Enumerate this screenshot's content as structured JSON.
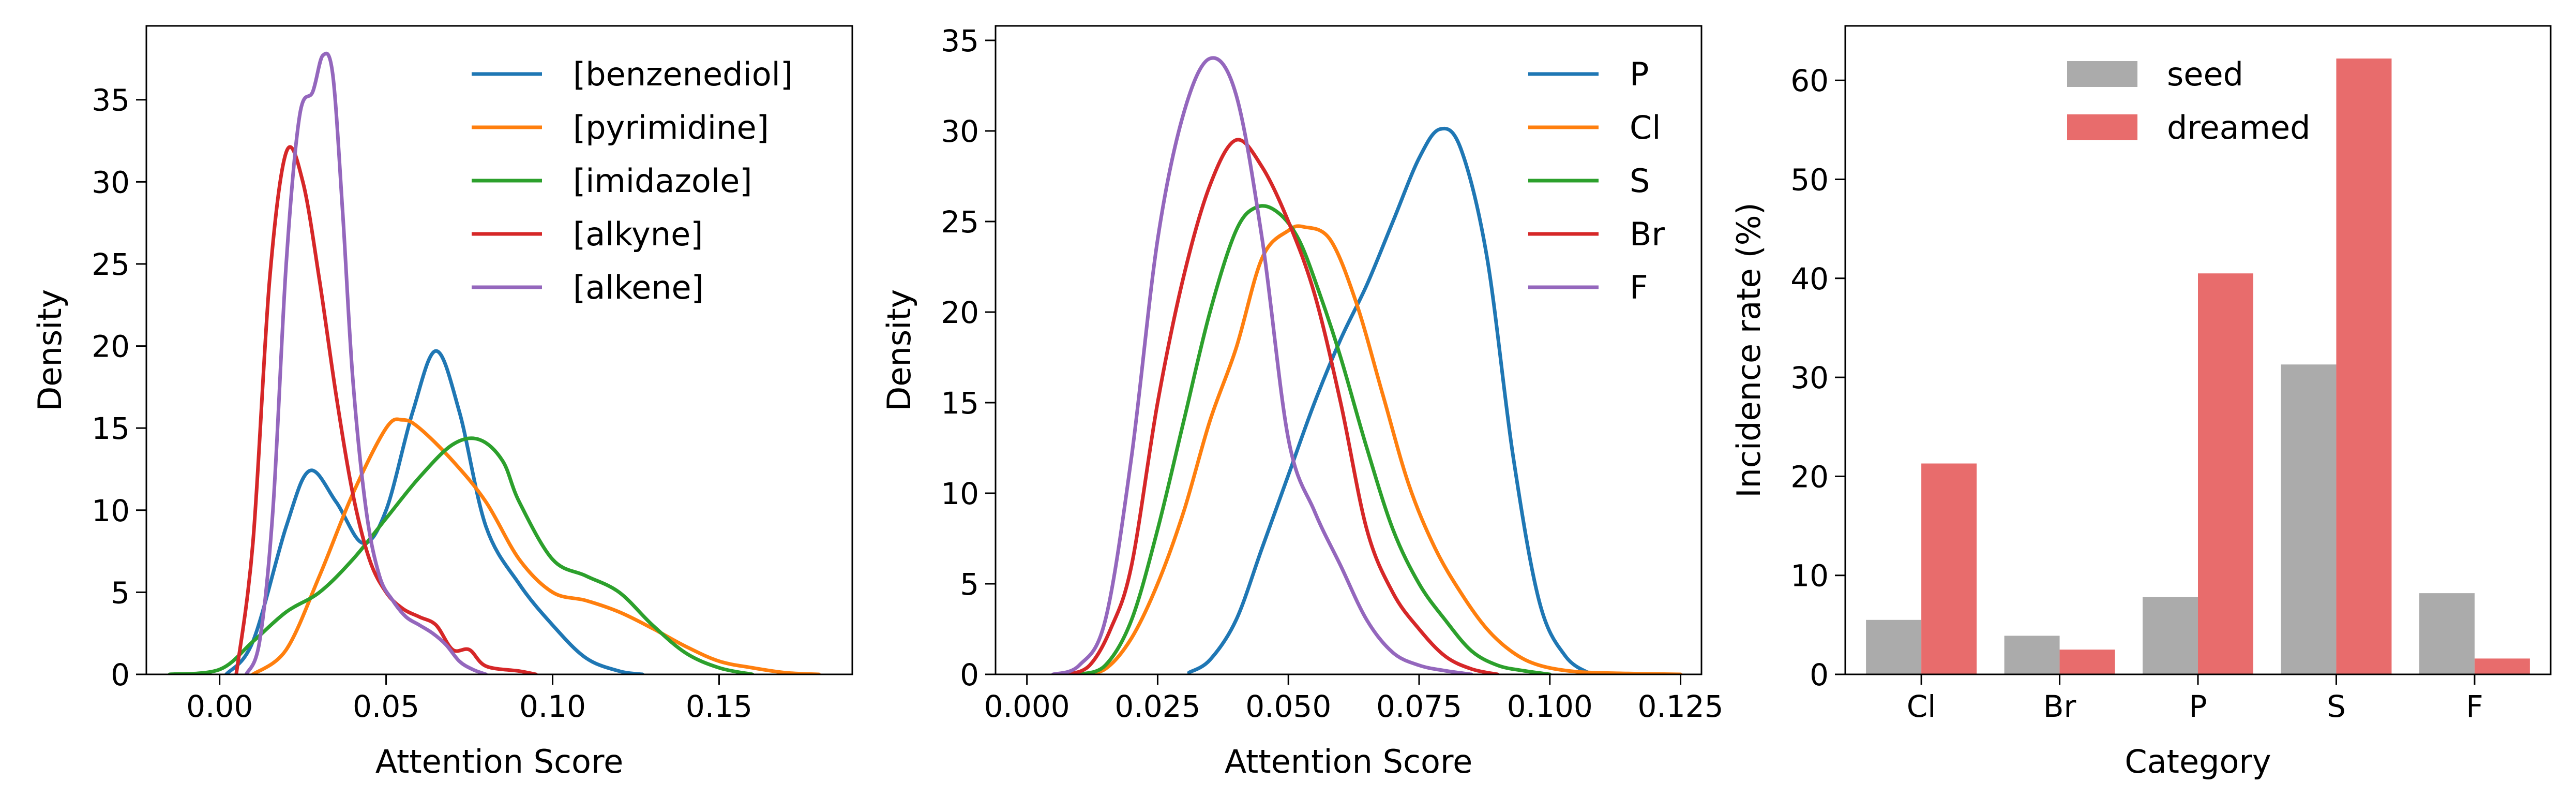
{
  "chart_data": [
    {
      "type": "line",
      "subtype": "kde",
      "xlabel": "Attention Score",
      "ylabel": "Density",
      "xlim": [
        -0.022,
        0.19
      ],
      "ylim": [
        0,
        39.5
      ],
      "xticks": [
        0.0,
        0.05,
        0.1,
        0.15
      ],
      "xtick_labels": [
        "0.00",
        "0.05",
        "0.10",
        "0.15"
      ],
      "yticks": [
        0,
        5,
        10,
        15,
        20,
        25,
        30,
        35
      ],
      "ytick_labels": [
        "0",
        "5",
        "10",
        "15",
        "20",
        "25",
        "30",
        "35"
      ],
      "grid": false,
      "legend_position": "top-right",
      "series": [
        {
          "name": "[benzenediol]",
          "color": "#1f77b4",
          "x": [
            0.002,
            0.01,
            0.02,
            0.027,
            0.035,
            0.043,
            0.05,
            0.058,
            0.065,
            0.072,
            0.08,
            0.09,
            0.1,
            0.11,
            0.12,
            0.127
          ],
          "y": [
            0,
            2,
            9,
            12.4,
            10.5,
            8,
            10,
            16,
            19.7,
            16,
            9,
            5.5,
            3,
            1,
            0.2,
            0
          ]
        },
        {
          "name": "[pyrimidine]",
          "color": "#ff7f0e",
          "x": [
            0.01,
            0.02,
            0.03,
            0.04,
            0.05,
            0.055,
            0.06,
            0.07,
            0.08,
            0.09,
            0.1,
            0.11,
            0.12,
            0.13,
            0.14,
            0.15,
            0.16,
            0.17,
            0.18
          ],
          "y": [
            0,
            1.5,
            6,
            11,
            15,
            15.5,
            15,
            13,
            10.5,
            7,
            5,
            4.5,
            3.8,
            2.8,
            1.7,
            0.8,
            0.4,
            0.1,
            0
          ]
        },
        {
          "name": "[imidazole]",
          "color": "#2ca02c",
          "x": [
            -0.015,
            0,
            0.01,
            0.02,
            0.03,
            0.04,
            0.05,
            0.06,
            0.07,
            0.078,
            0.085,
            0.09,
            0.1,
            0.11,
            0.12,
            0.13,
            0.14,
            0.15,
            0.16
          ],
          "y": [
            0,
            0.3,
            2,
            3.8,
            5,
            7,
            9.5,
            12,
            14,
            14.3,
            13,
            10.5,
            7,
            6,
            5,
            3,
            1.3,
            0.4,
            0
          ]
        },
        {
          "name": "[alkyne]",
          "color": "#d62728",
          "x": [
            0.005,
            0.01,
            0.015,
            0.02,
            0.025,
            0.03,
            0.035,
            0.04,
            0.045,
            0.05,
            0.055,
            0.06,
            0.065,
            0.07,
            0.075,
            0.08,
            0.09,
            0.095
          ],
          "y": [
            0,
            8,
            24,
            31.8,
            30,
            24,
            17,
            11,
            7,
            5,
            4,
            3.5,
            3,
            1.5,
            1.5,
            0.5,
            0.2,
            0
          ]
        },
        {
          "name": "[alkene]",
          "color": "#9467bd",
          "x": [
            0.008,
            0.012,
            0.016,
            0.02,
            0.024,
            0.028,
            0.031,
            0.034,
            0.037,
            0.04,
            0.044,
            0.048,
            0.052,
            0.056,
            0.06,
            0.064,
            0.068,
            0.072,
            0.076,
            0.08
          ],
          "y": [
            0,
            2,
            10,
            25,
            34,
            35.5,
            37.7,
            36.5,
            28,
            18,
            10,
            6,
            4.5,
            3.5,
            3,
            2.5,
            1.8,
            0.8,
            0.3,
            0
          ]
        }
      ]
    },
    {
      "type": "line",
      "subtype": "kde",
      "xlabel": "Attention Score",
      "ylabel": "Density",
      "xlim": [
        -0.006,
        0.129
      ],
      "ylim": [
        0,
        35.8
      ],
      "xticks": [
        0.0,
        0.025,
        0.05,
        0.075,
        0.1,
        0.125
      ],
      "xtick_labels": [
        "0.000",
        "0.025",
        "0.050",
        "0.075",
        "0.100",
        "0.125"
      ],
      "yticks": [
        0,
        5,
        10,
        15,
        20,
        25,
        30,
        35
      ],
      "ytick_labels": [
        "0",
        "5",
        "10",
        "15",
        "20",
        "25",
        "30",
        "35"
      ],
      "grid": false,
      "legend_position": "top-right",
      "series": [
        {
          "name": "P",
          "color": "#1f77b4",
          "x": [
            0.031,
            0.035,
            0.04,
            0.045,
            0.05,
            0.055,
            0.06,
            0.065,
            0.07,
            0.075,
            0.079,
            0.083,
            0.088,
            0.093,
            0.098,
            0.103,
            0.108
          ],
          "y": [
            0.1,
            0.8,
            3,
            7,
            11,
            15,
            18.5,
            21.5,
            25,
            28.5,
            30.1,
            29,
            23,
            12,
            4,
            1,
            0
          ]
        },
        {
          "name": "Cl",
          "color": "#ff7f0e",
          "x": [
            0.01,
            0.015,
            0.02,
            0.025,
            0.03,
            0.035,
            0.04,
            0.045,
            0.05,
            0.053,
            0.058,
            0.063,
            0.068,
            0.073,
            0.078,
            0.083,
            0.088,
            0.093,
            0.098,
            0.105,
            0.115,
            0.125
          ],
          "y": [
            0,
            0.3,
            2,
            5,
            9,
            14,
            18,
            23,
            24.5,
            24.7,
            24,
            20.5,
            15.5,
            10.5,
            7,
            4.5,
            2.5,
            1.2,
            0.5,
            0.15,
            0.05,
            0
          ]
        },
        {
          "name": "S",
          "color": "#2ca02c",
          "x": [
            0.01,
            0.015,
            0.02,
            0.025,
            0.03,
            0.035,
            0.04,
            0.044,
            0.048,
            0.052,
            0.056,
            0.06,
            0.065,
            0.07,
            0.075,
            0.08,
            0.085,
            0.09,
            0.095,
            0.1
          ],
          "y": [
            0,
            0.5,
            3,
            8,
            14,
            20,
            24.5,
            25.8,
            25.5,
            24,
            21,
            17.5,
            12.5,
            8,
            5,
            3,
            1.3,
            0.5,
            0.2,
            0
          ]
        },
        {
          "name": "Br",
          "color": "#d62728",
          "x": [
            0.008,
            0.012,
            0.016,
            0.02,
            0.025,
            0.03,
            0.035,
            0.04,
            0.045,
            0.05,
            0.055,
            0.06,
            0.065,
            0.07,
            0.075,
            0.08,
            0.085,
            0.09
          ],
          "y": [
            0,
            0.5,
            2.5,
            6,
            15,
            22,
            27,
            29.5,
            28,
            25,
            21,
            15,
            8,
            4.5,
            2.5,
            1,
            0.3,
            0
          ]
        },
        {
          "name": "F",
          "color": "#9467bd",
          "x": [
            0.005,
            0.01,
            0.015,
            0.02,
            0.025,
            0.03,
            0.035,
            0.04,
            0.045,
            0.05,
            0.055,
            0.06,
            0.065,
            0.07,
            0.075,
            0.08,
            0.085
          ],
          "y": [
            0,
            0.5,
            3,
            12,
            24,
            31,
            34,
            32,
            24,
            13,
            9,
            6,
            3,
            1.2,
            0.5,
            0.2,
            0
          ]
        }
      ]
    },
    {
      "type": "bar",
      "xlabel": "Category",
      "ylabel": "Incidence rate (%)",
      "categories": [
        "Cl",
        "Br",
        "P",
        "S",
        "F"
      ],
      "ylim": [
        0,
        65.5
      ],
      "yticks": [
        0,
        10,
        20,
        30,
        40,
        50,
        60
      ],
      "ytick_labels": [
        "0",
        "10",
        "20",
        "30",
        "40",
        "50",
        "60"
      ],
      "grid": false,
      "legend_position": "top-center",
      "series": [
        {
          "name": "seed",
          "color": "#ababab",
          "values": [
            5.5,
            3.9,
            7.8,
            31.3,
            8.2
          ]
        },
        {
          "name": "dreamed",
          "color": "#e86c6c",
          "values": [
            21.3,
            2.5,
            40.5,
            62.2,
            1.6
          ]
        }
      ]
    }
  ]
}
